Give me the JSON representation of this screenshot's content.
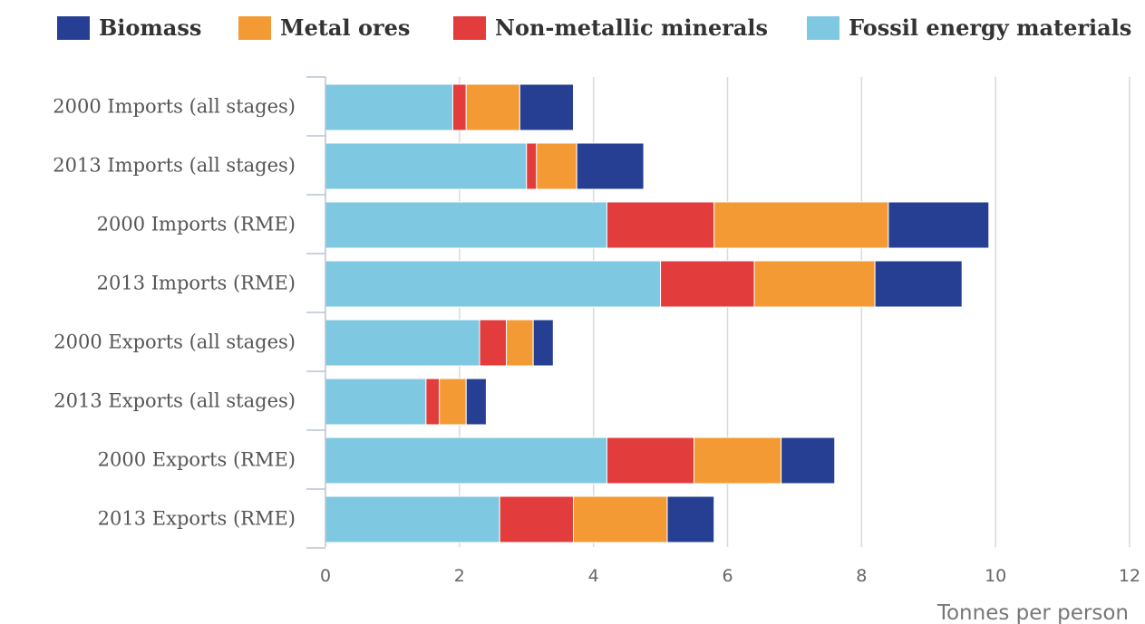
{
  "chart_data": {
    "type": "bar",
    "orientation": "horizontal",
    "stacked": true,
    "categories": [
      "2000 Imports (all stages)",
      "2013 Imports (all stages)",
      "2000 Imports (RME)",
      "2013 Imports (RME)",
      "2000 Exports (all stages)",
      "2013 Exports (all stages)",
      "2000 Exports (RME)",
      "2013 Exports (RME)"
    ],
    "series": [
      {
        "name": "Fossil energy materials",
        "color": "#7ec9e1",
        "values": [
          1.9,
          3.0,
          4.2,
          5.0,
          2.3,
          1.5,
          4.2,
          2.6
        ]
      },
      {
        "name": "Non-metallic minerals",
        "color": "#e23c3c",
        "values": [
          0.2,
          0.15,
          1.6,
          1.4,
          0.4,
          0.2,
          1.3,
          1.1
        ]
      },
      {
        "name": "Metal ores",
        "color": "#f39a35",
        "values": [
          0.8,
          0.6,
          2.6,
          1.8,
          0.4,
          0.4,
          1.3,
          1.4
        ]
      },
      {
        "name": "Biomass",
        "color": "#263f92",
        "values": [
          0.8,
          1.0,
          1.5,
          1.3,
          0.3,
          0.3,
          0.8,
          0.7
        ]
      }
    ],
    "legend_order": [
      "Biomass",
      "Metal ores",
      "Non-metallic minerals",
      "Fossil energy materials"
    ],
    "legend_position": "top",
    "xlabel": "Tonnes per person",
    "ylabel": "",
    "title": "",
    "xlim": [
      0,
      12
    ],
    "xticks": [
      0,
      2,
      4,
      6,
      8,
      10,
      12
    ],
    "grid": true
  }
}
